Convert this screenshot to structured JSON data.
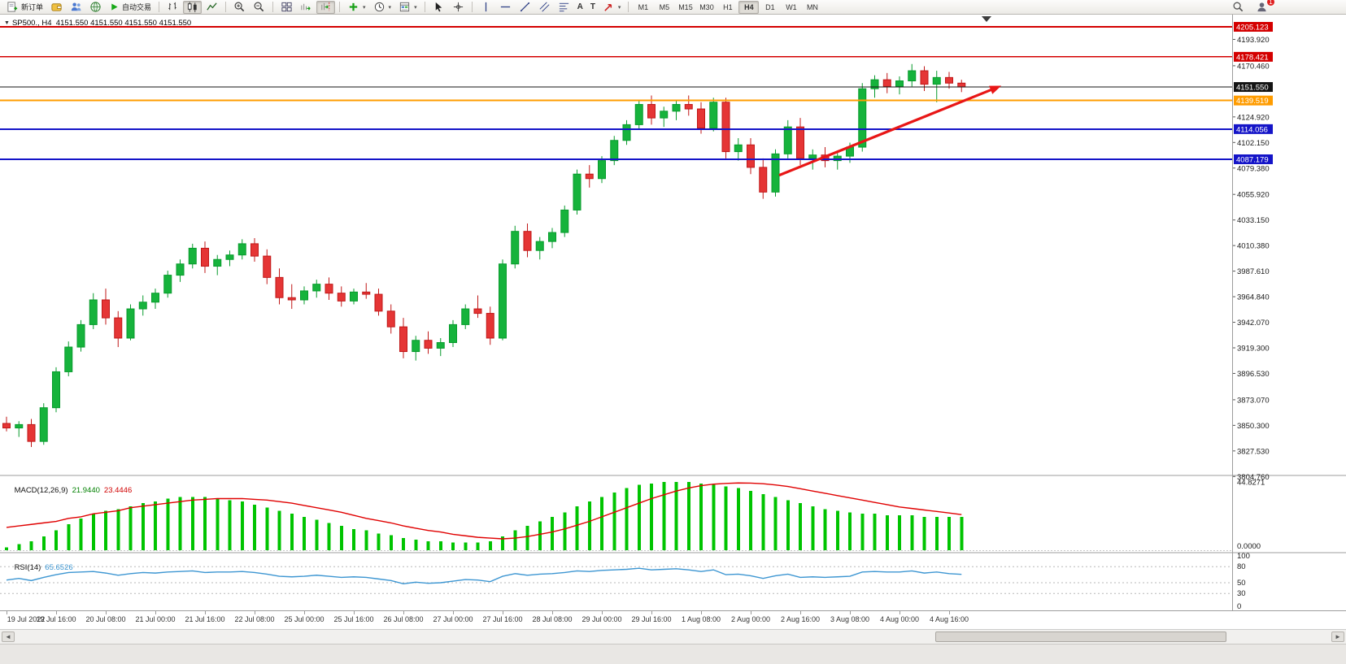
{
  "toolbar": {
    "new_order_label": "新订单",
    "autotrading_label": "自动交易",
    "timeframes": [
      "M1",
      "M5",
      "M15",
      "M30",
      "H1",
      "H4",
      "D1",
      "W1",
      "MN"
    ],
    "active_timeframe": "H4",
    "notification_count": "1",
    "icon_names": [
      "new-order-icon",
      "wallet-icon",
      "community-icon",
      "globe-icon",
      "autotrading-play-icon",
      "bar-chart-icon",
      "candlestick-icon",
      "line-chart-icon",
      "zoom-in-icon",
      "zoom-out-icon",
      "tile-windows-icon",
      "auto-scroll-icon",
      "chart-shift-icon",
      "indicators-icon",
      "periods-icon",
      "templates-icon",
      "cursor-icon",
      "crosshair-icon",
      "vertical-line-icon",
      "horizontal-line-icon",
      "trendline-icon",
      "channel-icon",
      "fibonacci-icon",
      "text-icon",
      "text-label-icon",
      "arrows-icon",
      "search-icon",
      "account-icon"
    ]
  },
  "icon_glyphs": {
    "dropdown_caret": "▾",
    "title_marker": "▼",
    "text_tool": "A",
    "text_label_tool": "T",
    "scroll_left": "◄",
    "scroll_right": "►"
  },
  "chart": {
    "title": "SP500., H4  4151.550 4151.550 4151.550 4151.550"
  },
  "indicators": {
    "macd": {
      "name": "MACD(12,26,9)",
      "main_value": "21.9440",
      "signal_value": "23.4446"
    },
    "rsi": {
      "name": "RSI(14)",
      "value": "65.6526"
    }
  },
  "chart_data": {
    "type": "candlestick",
    "symbol": "SP500",
    "period": "H4",
    "title": "SP500., H4",
    "ohlc_current": [
      4151.55,
      4151.55,
      4151.55,
      4151.55
    ],
    "ylim": [
      3805,
      4209
    ],
    "grid": false,
    "price_axis_ticks": [
      "4193.920",
      "4170.460",
      "4124.920",
      "4102.150",
      "4079.380",
      "4055.920",
      "4033.150",
      "4010.380",
      "3987.610",
      "3964.840",
      "3942.070",
      "3919.300",
      "3896.530",
      "3873.070",
      "3850.300",
      "3827.530",
      "3804.760"
    ],
    "levels": [
      {
        "price": "4205.123",
        "color": "#d40000",
        "width": 2
      },
      {
        "price": "4178.421",
        "color": "#d40000",
        "width": 1.6
      },
      {
        "price": "4151.550",
        "color": "#141414",
        "width": 1
      },
      {
        "price": "4139.519",
        "color": "#ff9c00",
        "width": 2
      },
      {
        "price": "4114.056",
        "color": "#1414c8",
        "width": 2
      },
      {
        "price": "4087.179",
        "color": "#1414c8",
        "width": 2
      }
    ],
    "times": [
      "19 Jul 2022",
      "19 Jul 16:00",
      "20 Jul 08:00",
      "21 Jul 00:00",
      "21 Jul 16:00",
      "22 Jul 08:00",
      "25 Jul 00:00",
      "25 Jul 16:00",
      "26 Jul 08:00",
      "27 Jul 00:00",
      "27 Jul 16:00",
      "28 Jul 08:00",
      "29 Jul 00:00",
      "29 Jul 16:00",
      "1 Aug 08:00",
      "2 Aug 00:00",
      "2 Aug 16:00",
      "3 Aug 08:00",
      "4 Aug 00:00",
      "4 Aug 16:00"
    ],
    "bars": [
      [
        3852,
        3858,
        3845,
        3848
      ],
      [
        3848,
        3854,
        3840,
        3851
      ],
      [
        3851,
        3856,
        3831,
        3836
      ],
      [
        3836,
        3870,
        3833,
        3866
      ],
      [
        3866,
        3902,
        3862,
        3898
      ],
      [
        3898,
        3925,
        3894,
        3920
      ],
      [
        3920,
        3944,
        3916,
        3940
      ],
      [
        3940,
        3968,
        3936,
        3962
      ],
      [
        3962,
        3972,
        3940,
        3946
      ],
      [
        3946,
        3952,
        3920,
        3928
      ],
      [
        3928,
        3958,
        3926,
        3954
      ],
      [
        3954,
        3966,
        3948,
        3960
      ],
      [
        3960,
        3972,
        3954,
        3968
      ],
      [
        3968,
        3988,
        3964,
        3984
      ],
      [
        3984,
        3998,
        3978,
        3994
      ],
      [
        3994,
        4012,
        3990,
        4008
      ],
      [
        4008,
        4014,
        3986,
        3992
      ],
      [
        3992,
        4002,
        3984,
        3998
      ],
      [
        3998,
        4006,
        3992,
        4002
      ],
      [
        4002,
        4016,
        3998,
        4012
      ],
      [
        4012,
        4017,
        3996,
        4001
      ],
      [
        4001,
        4007,
        3976,
        3982
      ],
      [
        3982,
        3990,
        3958,
        3964
      ],
      [
        3964,
        3976,
        3954,
        3962
      ],
      [
        3962,
        3974,
        3958,
        3970
      ],
      [
        3970,
        3980,
        3964,
        3976
      ],
      [
        3976,
        3982,
        3962,
        3968
      ],
      [
        3968,
        3974,
        3956,
        3961
      ],
      [
        3961,
        3972,
        3958,
        3969
      ],
      [
        3969,
        3977,
        3963,
        3967
      ],
      [
        3967,
        3972,
        3948,
        3952
      ],
      [
        3952,
        3958,
        3932,
        3938
      ],
      [
        3938,
        3946,
        3910,
        3916
      ],
      [
        3916,
        3930,
        3908,
        3926
      ],
      [
        3926,
        3934,
        3914,
        3919
      ],
      [
        3919,
        3928,
        3912,
        3924
      ],
      [
        3924,
        3944,
        3920,
        3940
      ],
      [
        3940,
        3958,
        3936,
        3954
      ],
      [
        3954,
        3966,
        3946,
        3950
      ],
      [
        3950,
        3956,
        3922,
        3928
      ],
      [
        3928,
        3998,
        3926,
        3994
      ],
      [
        3994,
        4028,
        3990,
        4023
      ],
      [
        4023,
        4030,
        4000,
        4006
      ],
      [
        4006,
        4018,
        3998,
        4014
      ],
      [
        4014,
        4026,
        4008,
        4022
      ],
      [
        4022,
        4046,
        4018,
        4042
      ],
      [
        4042,
        4078,
        4038,
        4074
      ],
      [
        4074,
        4082,
        4062,
        4070
      ],
      [
        4070,
        4090,
        4066,
        4086
      ],
      [
        4086,
        4108,
        4082,
        4104
      ],
      [
        4104,
        4122,
        4100,
        4118
      ],
      [
        4118,
        4140,
        4114,
        4136
      ],
      [
        4136,
        4144,
        4118,
        4124
      ],
      [
        4124,
        4134,
        4116,
        4130
      ],
      [
        4130,
        4140,
        4122,
        4136
      ],
      [
        4136,
        4144,
        4126,
        4132
      ],
      [
        4132,
        4138,
        4110,
        4115
      ],
      [
        4115,
        4142,
        4112,
        4138
      ],
      [
        4138,
        4142,
        4088,
        4094
      ],
      [
        4094,
        4106,
        4086,
        4100
      ],
      [
        4100,
        4106,
        4074,
        4080
      ],
      [
        4080,
        4088,
        4052,
        4058
      ],
      [
        4058,
        4096,
        4054,
        4092
      ],
      [
        4092,
        4122,
        4088,
        4116
      ],
      [
        4116,
        4124,
        4082,
        4088
      ],
      [
        4088,
        4096,
        4078,
        4091
      ],
      [
        4091,
        4098,
        4080,
        4086
      ],
      [
        4086,
        4094,
        4078,
        4090
      ],
      [
        4090,
        4102,
        4084,
        4098
      ],
      [
        4098,
        4155,
        4094,
        4150
      ],
      [
        4150,
        4162,
        4142,
        4158
      ],
      [
        4158,
        4164,
        4146,
        4152
      ],
      [
        4152,
        4161,
        4145,
        4157
      ],
      [
        4157,
        4172,
        4152,
        4166
      ],
      [
        4166,
        4170,
        4148,
        4154
      ],
      [
        4154,
        4166,
        4138,
        4160
      ],
      [
        4160,
        4165,
        4150,
        4155
      ],
      [
        4155,
        4158,
        4147,
        4151.55
      ]
    ],
    "macd": {
      "scale_max": "44.8271",
      "scale_zero": "0.0000",
      "current": [
        21.944,
        23.4446
      ],
      "histogram": [
        2,
        4,
        6,
        9,
        13,
        17,
        21,
        24,
        26,
        27,
        29,
        31,
        32,
        34,
        35,
        35,
        35,
        34,
        33,
        32,
        30,
        28,
        26,
        24,
        22,
        20,
        18,
        16,
        14,
        13,
        11,
        10,
        8,
        7,
        6,
        6,
        5,
        5,
        5,
        6,
        9,
        13,
        16,
        19,
        22,
        25,
        29,
        32,
        35,
        38,
        41,
        43,
        44,
        45,
        45,
        45,
        44,
        43,
        42,
        41,
        39,
        37,
        35,
        33,
        31,
        29,
        27,
        26,
        25,
        24,
        24,
        23,
        23,
        23,
        22,
        22,
        22,
        21.94
      ],
      "signal": [
        15,
        16,
        17,
        18,
        19,
        21,
        22,
        24,
        25,
        26,
        28,
        29,
        30,
        31,
        32,
        33,
        33.5,
        34,
        34,
        34,
        33.5,
        33,
        32,
        31,
        29.5,
        28,
        26.5,
        25,
        23,
        21,
        19.5,
        18,
        16,
        14.5,
        13,
        12,
        10.5,
        9.5,
        8.5,
        8,
        7.5,
        8,
        9,
        10.5,
        12,
        14,
        16.5,
        19,
        22,
        25,
        28,
        31,
        34,
        36.5,
        39,
        41,
        42.5,
        43.5,
        44,
        44.3,
        44.2,
        43.8,
        43,
        42,
        40.5,
        39,
        37.5,
        36,
        34.5,
        33,
        31.5,
        30,
        28.5,
        27.5,
        26.5,
        25.5,
        24.5,
        23.44
      ]
    },
    "rsi": {
      "current": 65.6526,
      "axis_labels": [
        "100",
        "80",
        "50",
        "30",
        "0"
      ],
      "level_lines": [
        80,
        50,
        30
      ],
      "values": [
        55,
        58,
        54,
        60,
        65,
        69,
        70,
        71,
        68,
        64,
        67,
        69,
        68,
        70,
        71,
        72,
        69,
        70,
        70,
        71,
        69,
        66,
        62,
        61,
        62,
        64,
        62,
        60,
        61,
        60,
        57,
        54,
        48,
        51,
        49,
        50,
        53,
        56,
        55,
        52,
        62,
        67,
        64,
        66,
        67,
        69,
        72,
        71,
        73,
        74,
        75,
        77,
        74,
        75,
        76,
        74,
        71,
        74,
        65,
        66,
        63,
        58,
        63,
        66,
        60,
        61,
        60,
        61,
        62,
        70,
        71,
        70,
        70,
        72,
        68,
        70,
        67,
        65.65
      ]
    },
    "trend_arrow": {
      "from": {
        "bar": 62.3,
        "price": 4073
      },
      "to": {
        "bar": 79.6,
        "price": 4150
      },
      "color": "#e81616"
    },
    "colors": {
      "up": "#16b33c",
      "up_border": "#089b2d",
      "down": "#e53535",
      "down_border": "#c01818",
      "macd_hist": "#00c400",
      "macd_signal": "#e00000",
      "rsi_line": "#3d96d2",
      "axis_text": "#1a1a1a",
      "separator": "#9c9c9c"
    }
  }
}
